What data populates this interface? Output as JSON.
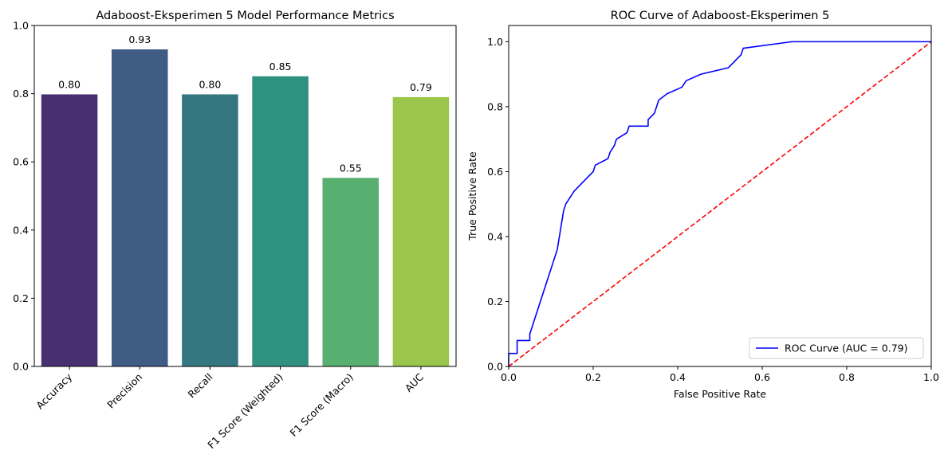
{
  "chart_data": [
    {
      "type": "bar",
      "title": "Adaboost-Eksperimen 5 Model Performance Metrics",
      "xlabel": "",
      "ylabel": "",
      "ylim": [
        0,
        1.0
      ],
      "yticks": [
        "0.0",
        "0.2",
        "0.4",
        "0.6",
        "0.8",
        "1.0"
      ],
      "categories": [
        "Accuracy",
        "Precision",
        "Recall",
        "F1 Score (Weighted)",
        "F1 Score (Macro)",
        "AUC"
      ],
      "values": [
        0.798,
        0.93,
        0.798,
        0.851,
        0.553,
        0.79
      ],
      "data_labels": [
        "0.80",
        "0.93",
        "0.80",
        "0.85",
        "0.55",
        "0.79"
      ],
      "colors": [
        "#482f72",
        "#3e5c84",
        "#347780",
        "#2f917f",
        "#57b06f",
        "#9bc64c"
      ],
      "grid": false
    },
    {
      "type": "line",
      "title": "ROC Curve of Adaboost-Eksperimen 5",
      "xlabel": "False Positive Rate",
      "ylabel": "True Positive Rate",
      "xlim": [
        0.0,
        1.0
      ],
      "ylim": [
        0.0,
        1.05
      ],
      "xticks": [
        "0.0",
        "0.2",
        "0.4",
        "0.6",
        "0.8",
        "1.0"
      ],
      "yticks": [
        "0.0",
        "0.2",
        "0.4",
        "0.6",
        "0.8",
        "1.0"
      ],
      "grid": false,
      "legend": "bottom-right",
      "series": [
        {
          "name": "ROC Curve (AUC = 0.79)",
          "color": "#0000ff",
          "style": "solid",
          "points": [
            [
              0.0,
              0.0
            ],
            [
              0.0,
              0.04
            ],
            [
              0.02,
              0.04
            ],
            [
              0.02,
              0.08
            ],
            [
              0.05,
              0.08
            ],
            [
              0.05,
              0.1
            ],
            [
              0.055,
              0.12
            ],
            [
              0.06,
              0.14
            ],
            [
              0.065,
              0.16
            ],
            [
              0.07,
              0.18
            ],
            [
              0.075,
              0.2
            ],
            [
              0.08,
              0.22
            ],
            [
              0.085,
              0.24
            ],
            [
              0.09,
              0.26
            ],
            [
              0.095,
              0.28
            ],
            [
              0.1,
              0.3
            ],
            [
              0.105,
              0.32
            ],
            [
              0.11,
              0.34
            ],
            [
              0.115,
              0.36
            ],
            [
              0.12,
              0.4
            ],
            [
              0.125,
              0.44
            ],
            [
              0.13,
              0.48
            ],
            [
              0.135,
              0.5
            ],
            [
              0.145,
              0.52
            ],
            [
              0.155,
              0.54
            ],
            [
              0.17,
              0.56
            ],
            [
              0.185,
              0.58
            ],
            [
              0.2,
              0.6
            ],
            [
              0.205,
              0.62
            ],
            [
              0.235,
              0.64
            ],
            [
              0.24,
              0.66
            ],
            [
              0.25,
              0.68
            ],
            [
              0.255,
              0.7
            ],
            [
              0.28,
              0.72
            ],
            [
              0.285,
              0.74
            ],
            [
              0.33,
              0.74
            ],
            [
              0.33,
              0.76
            ],
            [
              0.345,
              0.78
            ],
            [
              0.35,
              0.8
            ],
            [
              0.355,
              0.82
            ],
            [
              0.375,
              0.84
            ],
            [
              0.41,
              0.86
            ],
            [
              0.42,
              0.88
            ],
            [
              0.455,
              0.9
            ],
            [
              0.52,
              0.92
            ],
            [
              0.55,
              0.96
            ],
            [
              0.555,
              0.98
            ],
            [
              0.67,
              1.0
            ],
            [
              1.0,
              1.0
            ]
          ]
        },
        {
          "name": "",
          "color": "#ff0000",
          "style": "dashed",
          "points": [
            [
              0.0,
              0.0
            ],
            [
              1.0,
              1.0
            ]
          ]
        }
      ]
    }
  ]
}
